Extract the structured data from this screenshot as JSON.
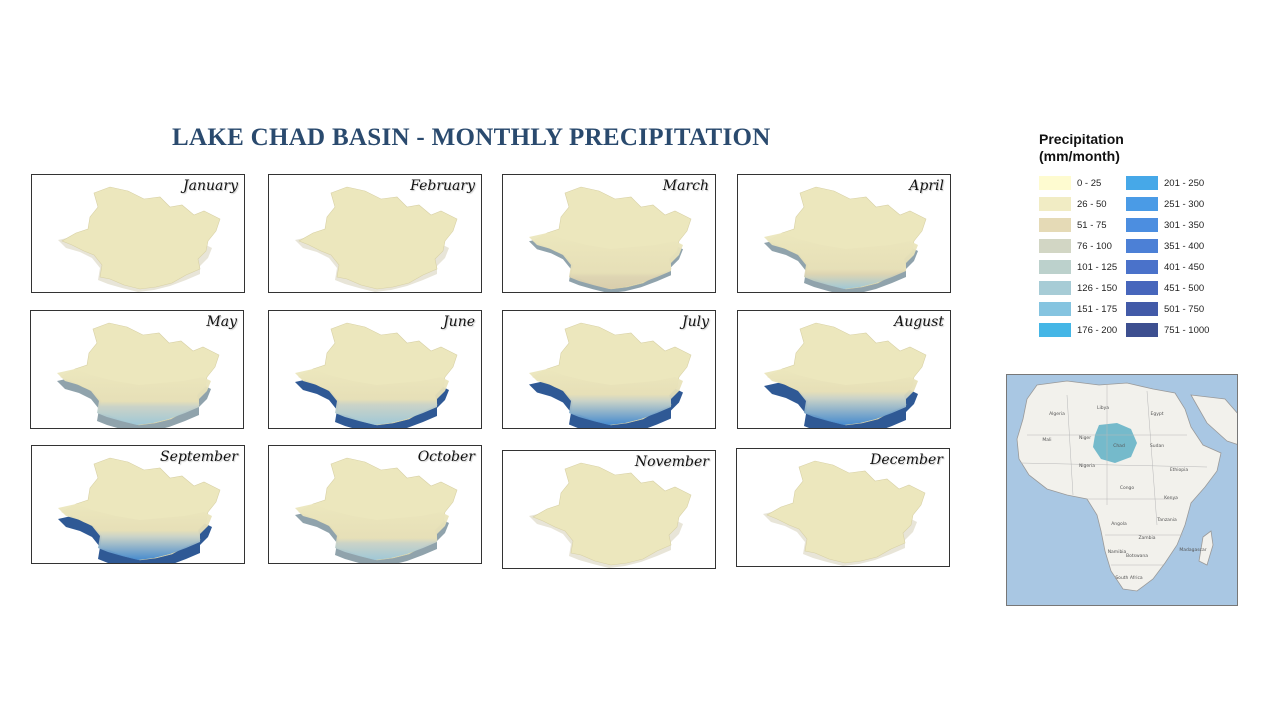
{
  "title": "LAKE CHAD BASIN - MONTHLY PRECIPITATION",
  "months": [
    {
      "name": "January",
      "wet": 0
    },
    {
      "name": "February",
      "wet": 0
    },
    {
      "name": "March",
      "wet": 0.12
    },
    {
      "name": "April",
      "wet": 0.3
    },
    {
      "name": "May",
      "wet": 0.5
    },
    {
      "name": "June",
      "wet": 0.6
    },
    {
      "name": "July",
      "wet": 0.85
    },
    {
      "name": "August",
      "wet": 1.0
    },
    {
      "name": "September",
      "wet": 0.8
    },
    {
      "name": "October",
      "wet": 0.4
    },
    {
      "name": "November",
      "wet": 0
    },
    {
      "name": "December",
      "wet": 0
    }
  ],
  "legend": {
    "title_line1": "Precipitation",
    "title_line2": "(mm/month)",
    "classes": [
      {
        "label": "0 - 25",
        "color": "#fefbd0"
      },
      {
        "label": "26 - 50",
        "color": "#f1ecc4"
      },
      {
        "label": "51 - 75",
        "color": "#e5dab6"
      },
      {
        "label": "76 - 100",
        "color": "#d2d6c4"
      },
      {
        "label": "101 - 125",
        "color": "#bcd1cc"
      },
      {
        "label": "126 - 150",
        "color": "#a7ccd6"
      },
      {
        "label": "151 - 175",
        "color": "#85c4e0"
      },
      {
        "label": "176 - 200",
        "color": "#44b6e6"
      },
      {
        "label": "201 - 250",
        "color": "#46a8e8"
      },
      {
        "label": "251 - 300",
        "color": "#4a9be6"
      },
      {
        "label": "301 - 350",
        "color": "#4c8ee0"
      },
      {
        "label": "351 - 400",
        "color": "#4c80d6"
      },
      {
        "label": "401 - 450",
        "color": "#4a72ca"
      },
      {
        "label": "451 - 500",
        "color": "#4766bc"
      },
      {
        "label": "501 - 750",
        "color": "#425aa8"
      },
      {
        "label": "751 - 1000",
        "color": "#3d4f90"
      }
    ]
  },
  "inset": {
    "countries": [
      "Algeria",
      "Libya",
      "Egypt",
      "Mali",
      "Niger",
      "Chad",
      "Sudan",
      "Nigeria",
      "Ethiopia",
      "Congo",
      "Kenya",
      "Tanzania",
      "Angola",
      "Zambia",
      "Namibia",
      "Botswana",
      "South Africa",
      "Madagascar"
    ],
    "ocean_color": "#a9c7e3",
    "land_color": "#f2f1ec",
    "basin_color": "#5fb0c6"
  }
}
